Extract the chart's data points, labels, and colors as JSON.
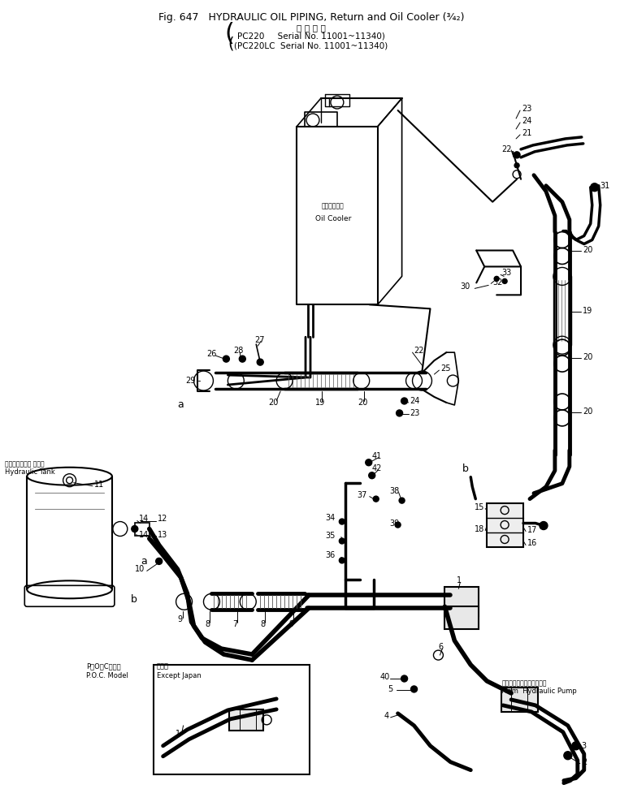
{
  "title1": "Fig. 647   HYDRAULIC OIL PIPING, Return and Oil Cooler (¾₂)",
  "title_jp": "適 用 号 機",
  "title2": "PC220    Serial No. 11001~11340)",
  "title3": "(PC220LC  Serial No. 11001~11340)",
  "bg": "#ffffff",
  "lc": "#000000"
}
